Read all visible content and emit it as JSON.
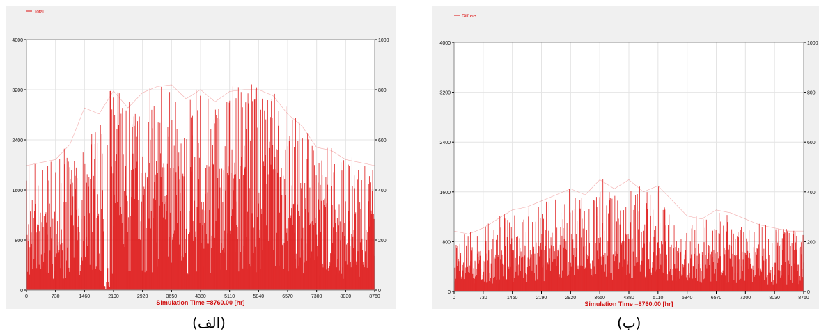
{
  "colors": {
    "series": "#dd1111",
    "axis": "#000000",
    "grid": "#e4e4e4",
    "plot_bg": "#ffffff",
    "panel_bg": "#f0f0f0",
    "sim_label": "#d01010"
  },
  "panels": [
    {
      "legend": "Total",
      "caption": "(الف)",
      "xlabel": "Simulation Time =8760.00 [hr]"
    },
    {
      "legend": "Diffuse",
      "caption": "(ب)",
      "xlabel": "Simulation Time =8760.00 [hr]"
    }
  ],
  "chart_data": [
    {
      "type": "line",
      "title": "",
      "xlabel": "Simulation Time =8760.00 [hr]",
      "ylabel": "",
      "xlim": [
        0,
        8760
      ],
      "ylim": [
        0,
        4000
      ],
      "y2lim": [
        0,
        1000
      ],
      "xticks": [
        0,
        730,
        1460,
        2190,
        2920,
        3650,
        4380,
        5110,
        5840,
        6570,
        7300,
        8030,
        8760
      ],
      "yticks": [
        0,
        800,
        1600,
        2400,
        3200,
        4000
      ],
      "y2ticks": [
        0,
        200,
        400,
        600,
        800,
        1000
      ],
      "series": [
        {
          "name": "Total",
          "x": [
            0,
            365,
            730,
            1095,
            1460,
            1825,
            2190,
            2555,
            2920,
            3285,
            3650,
            4015,
            4380,
            4745,
            5110,
            5475,
            5840,
            6205,
            6570,
            6935,
            7300,
            7665,
            8030,
            8395,
            8760
          ],
          "y": [
            2050,
            2100,
            2150,
            2400,
            3000,
            2900,
            3280,
            3000,
            3250,
            3350,
            3380,
            3150,
            3300,
            3100,
            3270,
            3300,
            3300,
            3200,
            2900,
            2700,
            2350,
            2300,
            2150,
            2100,
            2050
          ]
        }
      ],
      "grid": true,
      "legend_position": "top-left"
    },
    {
      "type": "line",
      "title": "",
      "xlabel": "Simulation Time =8760.00 [hr]",
      "ylabel": "",
      "xlim": [
        0,
        8760
      ],
      "ylim": [
        0,
        4000
      ],
      "y2lim": [
        0,
        1000
      ],
      "xticks": [
        0,
        730,
        1460,
        2190,
        2920,
        3650,
        4380,
        5110,
        5840,
        6570,
        7300,
        8030,
        8760
      ],
      "yticks": [
        0,
        800,
        1600,
        2400,
        3200,
        4000
      ],
      "y2ticks": [
        0,
        200,
        400,
        600,
        800,
        1000
      ],
      "series": [
        {
          "name": "Diffuse",
          "x": [
            0,
            365,
            730,
            1095,
            1460,
            1825,
            2190,
            2555,
            2920,
            3285,
            3650,
            4015,
            4380,
            4745,
            5110,
            5475,
            5840,
            6205,
            6570,
            6935,
            7300,
            7665,
            8030,
            8395,
            8760
          ],
          "y": [
            1000,
            950,
            1050,
            1200,
            1350,
            1400,
            1500,
            1600,
            1700,
            1600,
            1850,
            1700,
            1850,
            1650,
            1750,
            1500,
            1250,
            1200,
            1350,
            1300,
            1200,
            1100,
            1050,
            1000,
            1000
          ]
        }
      ],
      "grid": true,
      "legend_position": "top-left"
    }
  ]
}
